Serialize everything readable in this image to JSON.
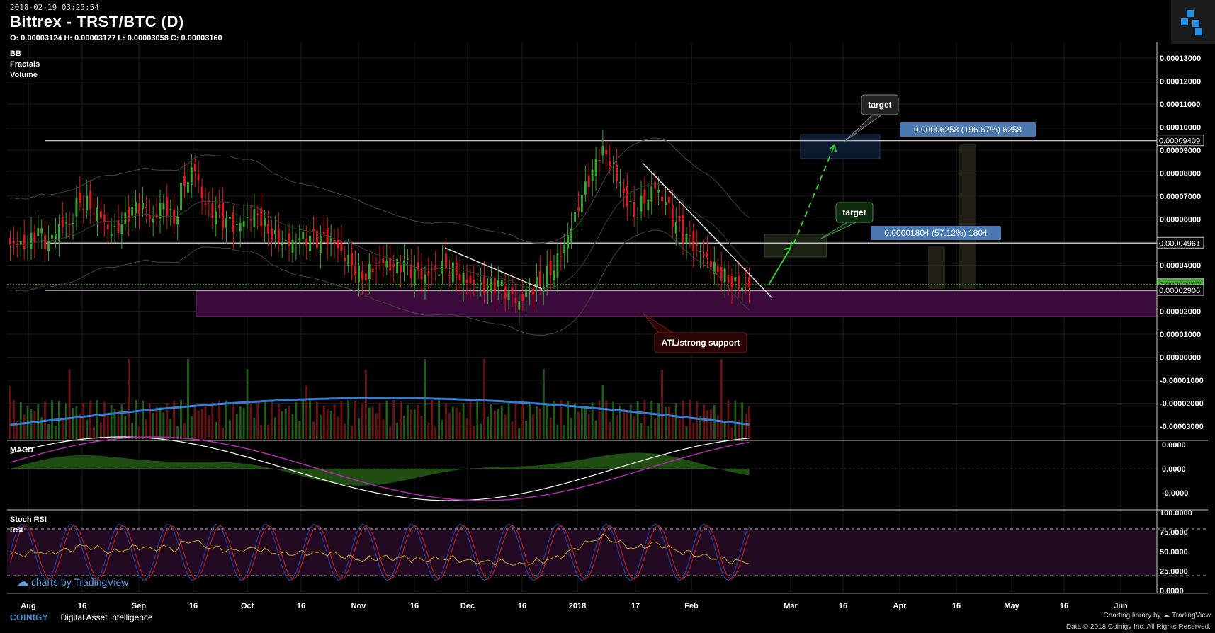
{
  "header": {
    "datetime": "2018-02-19 03:25:54",
    "title": "Bittrex - TRST/BTC (D)",
    "ohlc": "O: 0.00003124 H: 0.00003177 L: 0.00003058 C: 0.00003160"
  },
  "indicators": {
    "bb": "BB",
    "fractals": "Fractals",
    "volume": "Volume",
    "macd": "MACD",
    "stoch_rsi": "Stoch RSI",
    "rsi": "RSI"
  },
  "colors": {
    "up": "#3aa82a",
    "down": "#e0171c",
    "bg": "#000000",
    "grid": "#1c1c1c",
    "macd_hist": "#1f4d12",
    "zone": "#3a0a3a",
    "volume_ma": "#2f7fd6"
  },
  "annotations": {
    "target_top": "target",
    "target_mid": "target",
    "support": "ATL/strong support",
    "measure_top": "0.00006258 (196.67%) 6258",
    "measure_mid": "0.00001804 (57.12%) 1804"
  },
  "chart_data": {
    "type": "candlestick",
    "title": "Bittrex - TRST/BTC (D)",
    "price_axis": [
      "0.00013000",
      "0.00012000",
      "0.00011000",
      "0.00010000",
      "0.00009000",
      "0.00008000",
      "0.00007000",
      "0.00006000",
      "0.00005000",
      "0.00004000",
      "0.00003000",
      "0.00002000",
      "0.00001000",
      "0.00000000",
      "-0.00001000",
      "-0.00002000",
      "-0.00003000"
    ],
    "price_tags": [
      {
        "value": "0.00009409",
        "color": "#ffffff"
      },
      {
        "value": "0.00004961",
        "color": "#ffffff"
      },
      {
        "value": "0.00003160",
        "color": "#3aa82a"
      },
      {
        "value": "0.00002906",
        "color": "#ffffff"
      }
    ],
    "levels": [
      9.409e-05,
      4.961e-05,
      2.906e-05
    ],
    "macd_axis": [
      "0.0000",
      "0.0000",
      "-0.0000"
    ],
    "rsi_axis": [
      "100.0000",
      "75.0000",
      "50.0000",
      "25.0000",
      "0.0000"
    ],
    "time_axis": [
      "Aug",
      "16",
      "Sep",
      "16",
      "Oct",
      "16",
      "Nov",
      "16",
      "Dec",
      "16",
      "2018",
      "17",
      "Feb",
      "Mar",
      "16",
      "Apr",
      "16",
      "May",
      "16",
      "Jun"
    ],
    "close_series": [
      4.9,
      4.8,
      5.3,
      4.7,
      5.6,
      5.8,
      7.0,
      6.8,
      6.3,
      5.4,
      5.6,
      6.2,
      6.4,
      5.9,
      6.8,
      6.1,
      7.8,
      8.3,
      6.6,
      6.1,
      5.7,
      5.5,
      6.0,
      6.4,
      5.7,
      5.3,
      5.0,
      5.1,
      5.0,
      4.9,
      5.0,
      4.6,
      4.2,
      3.7,
      4.0,
      4.2,
      3.8,
      3.9,
      3.5,
      3.4,
      3.8,
      4.1,
      3.9,
      3.5,
      3.1,
      2.9,
      3.0,
      2.6,
      2.3,
      3.0,
      3.4,
      3.9,
      4.6,
      5.6,
      6.8,
      7.8,
      8.9,
      8.1,
      7.3,
      6.4,
      7.0,
      7.5,
      6.7,
      5.6,
      5.0,
      4.6,
      4.3,
      3.9,
      3.6,
      3.3,
      3.16
    ]
  },
  "footer": {
    "brand": "COINIGY",
    "tagline": "Digital Asset Intelligence",
    "charting": "Charting library by",
    "tradingview": "TradingView",
    "copyright": "Data © 2018 Coinigy Inc. All Rights Reserved.",
    "badge": "charts by TradingView"
  }
}
